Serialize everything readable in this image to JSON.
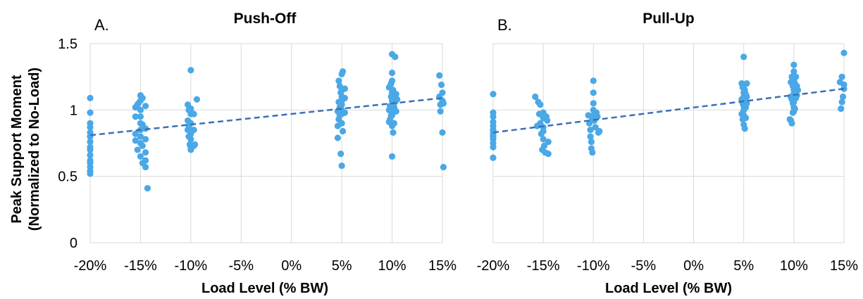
{
  "figure": {
    "y_axis_label_line1": "Peak Support Moment",
    "y_axis_label_line2": "(Normalized to No-Load)"
  },
  "chart_data": [
    {
      "type": "scatter",
      "panel_label": "A.",
      "title": "Push-Off",
      "xlabel": "Load Level (% BW)",
      "ylabel": "Peak Support Moment (Normalized to No-Load)",
      "x_ticks": [
        "-20%",
        "-15%",
        "-10%",
        "-5%",
        "0%",
        "5%",
        "10%",
        "15%"
      ],
      "y_ticks": [
        "0",
        "0.5",
        "1",
        "1.5"
      ],
      "xlim": [
        -20,
        15
      ],
      "ylim": [
        0,
        1.5
      ],
      "grid": true,
      "point_color": "#4aa8e6",
      "trendline": {
        "style": "dashed",
        "color": "#3a6fb6",
        "x": [
          -20,
          15
        ],
        "y": [
          0.81,
          1.09
        ]
      },
      "series": [
        {
          "x": [
            -20,
            -20,
            -20,
            -20,
            -20,
            -20,
            -20,
            -20,
            -20,
            -20,
            -20,
            -20,
            -20,
            -20,
            -20,
            -15.5,
            -15.5,
            -15.5,
            -15.5,
            -15.3,
            -15.3,
            -15.2,
            -15,
            -15,
            -15,
            -15,
            -15,
            -15,
            -15,
            -15,
            -15,
            -14.8,
            -14.8,
            -14.8,
            -14.8,
            -14.5,
            -14.5,
            -14.5,
            -14.5,
            -14.5,
            -14.5,
            -14.3,
            -10.3,
            -10.3,
            -10.3,
            -10.2,
            -10.2,
            -10.2,
            -10.1,
            -10,
            -10,
            -10,
            -10,
            -10,
            -10,
            -10,
            -10,
            -10,
            -9.7,
            -9.7,
            -9.7,
            -9.6,
            -9.4,
            4.6,
            4.6,
            4.6,
            4.7,
            4.7,
            4.7,
            4.8,
            4.8,
            4.8,
            4.9,
            4.9,
            5,
            5,
            5,
            5,
            5,
            5,
            5,
            5,
            5.1,
            5.1,
            5.1,
            5.3,
            5.3,
            5.3,
            9.7,
            9.7,
            9.7,
            9.8,
            9.8,
            9.8,
            9.9,
            9.9,
            9.9,
            10,
            10,
            10,
            10,
            10,
            10,
            10,
            10,
            10,
            10,
            10.1,
            10.1,
            10.1,
            10.2,
            10.2,
            10.2,
            10.3,
            10.3,
            10.4,
            10.4,
            10.5,
            14.7,
            14.7,
            14.8,
            14.8,
            14.9,
            15,
            15,
            15,
            15.1,
            15.1
          ],
          "y": [
            1.09,
            0.98,
            0.9,
            0.87,
            0.83,
            0.8,
            0.76,
            0.72,
            0.7,
            0.66,
            0.62,
            0.6,
            0.57,
            0.54,
            0.52,
            1.02,
            0.95,
            0.82,
            0.77,
            1.04,
            0.7,
            1.05,
            1.11,
            1.07,
            1.0,
            0.95,
            0.9,
            0.85,
            0.8,
            0.75,
            0.65,
            1.09,
            0.89,
            0.73,
            0.6,
            1.03,
            0.86,
            0.78,
            0.68,
            0.62,
            0.57,
            0.41,
            1.04,
            0.92,
            0.85,
            1.0,
            0.88,
            0.8,
            0.74,
            1.3,
            1.01,
            0.97,
            0.9,
            0.85,
            0.82,
            0.78,
            0.72,
            0.7,
            0.97,
            0.85,
            0.73,
            0.74,
            1.08,
            0.99,
            0.88,
            0.79,
            1.22,
            1.06,
            0.93,
            1.18,
            1.02,
            0.96,
            1.13,
            0.67,
            1.27,
            1.15,
            1.1,
            1.04,
            1.0,
            0.97,
            0.9,
            0.58,
            1.29,
            1.08,
            0.84,
            1.16,
            1.09,
            0.98,
            1.17,
            1.0,
            0.91,
            1.18,
            1.03,
            0.93,
            1.2,
            1.1,
            0.96,
            1.42,
            1.28,
            1.22,
            1.13,
            1.07,
            1.03,
            1.0,
            0.96,
            0.88,
            0.65,
            1.15,
            1.05,
            0.83,
            1.1,
            1.02,
            0.9,
            1.4,
            1.06,
            1.12,
            0.99,
            1.08,
            1.26,
            1.1,
            1.04,
            0.99,
            1.19,
            1.13,
            1.07,
            0.83,
            1.05,
            0.57
          ]
        }
      ]
    },
    {
      "type": "scatter",
      "panel_label": "B.",
      "title": "Pull-Up",
      "xlabel": "Load Level (% BW)",
      "ylabel": "",
      "x_ticks": [
        "-20%",
        "-15%",
        "-10%",
        "-5%",
        "0%",
        "5%",
        "10%",
        "15%"
      ],
      "y_ticks": [
        "0",
        "0.5",
        "1",
        "1.5"
      ],
      "xlim": [
        -20,
        15
      ],
      "ylim": [
        0,
        1.5
      ],
      "grid": true,
      "point_color": "#4aa8e6",
      "trendline": {
        "style": "dashed",
        "color": "#3a6fb6",
        "x": [
          -20,
          15
        ],
        "y": [
          0.83,
          1.16
        ]
      },
      "series": [
        {
          "x": [
            -20,
            -20,
            -20,
            -20,
            -20,
            -20,
            -20,
            -20,
            -20,
            -20,
            -20,
            -20,
            -20,
            -15.8,
            -15.6,
            -15.5,
            -15.4,
            -15.3,
            -15.3,
            -15.2,
            -15.1,
            -15,
            -15,
            -15,
            -15,
            -15,
            -14.9,
            -14.8,
            -14.7,
            -14.6,
            -14.5,
            -14.5,
            -10.5,
            -10.4,
            -10.3,
            -10.3,
            -10.2,
            -10.2,
            -10.1,
            -10.1,
            -10,
            -10,
            -10,
            -10,
            -10,
            -9.9,
            -9.8,
            -9.7,
            -9.6,
            -9.5,
            -9.4,
            4.8,
            4.8,
            4.8,
            4.9,
            4.9,
            4.9,
            5,
            5,
            5,
            5,
            5,
            5,
            5,
            5,
            5,
            5.1,
            5.1,
            5.1,
            5.2,
            5.2,
            5.2,
            5.3,
            5.3,
            5.3,
            9.6,
            9.7,
            9.7,
            9.7,
            9.8,
            9.8,
            9.8,
            9.9,
            9.9,
            9.9,
            10,
            10,
            10,
            10,
            10,
            10,
            10,
            10,
            10,
            10.1,
            10.1,
            10.1,
            10.2,
            10.2,
            10.3,
            10.3,
            10.4,
            14.6,
            14.7,
            14.8,
            14.8,
            14.9,
            15,
            15,
            15
          ],
          "y": [
            1.12,
            0.98,
            0.95,
            0.91,
            0.88,
            0.85,
            0.83,
            0.81,
            0.8,
            0.78,
            0.75,
            0.72,
            0.64,
            1.1,
            0.88,
            1.06,
            0.97,
            1.04,
            0.9,
            0.82,
            0.7,
            0.98,
            0.94,
            0.87,
            0.84,
            0.78,
            0.73,
            0.68,
            0.95,
            0.92,
            0.76,
            0.67,
            0.96,
            0.9,
            0.85,
            0.8,
            0.76,
            0.71,
            0.68,
            0.93,
            1.22,
            1.13,
            1.05,
            1.0,
            0.96,
            0.92,
            0.87,
            0.98,
            0.95,
            0.83,
            0.84,
            1.2,
            1.08,
            0.97,
            1.17,
            1.05,
            0.93,
            1.4,
            1.18,
            1.13,
            1.1,
            1.06,
            1.03,
            1.0,
            0.96,
            0.89,
            1.15,
            1.08,
            0.86,
            1.12,
            1.02,
            0.94,
            1.2,
            1.1,
            1.05,
            0.93,
            1.21,
            1.1,
            0.92,
            1.25,
            1.08,
            0.9,
            1.18,
            1.05,
            0.98,
            1.34,
            1.29,
            1.22,
            1.15,
            1.12,
            1.1,
            1.06,
            1.02,
            0.99,
            1.2,
            1.14,
            1.01,
            1.25,
            1.09,
            1.18,
            1.11,
            1.15,
            1.21,
            1.01,
            1.06,
            1.25,
            1.1,
            1.43,
            1.19,
            1.16
          ]
        }
      ]
    }
  ]
}
